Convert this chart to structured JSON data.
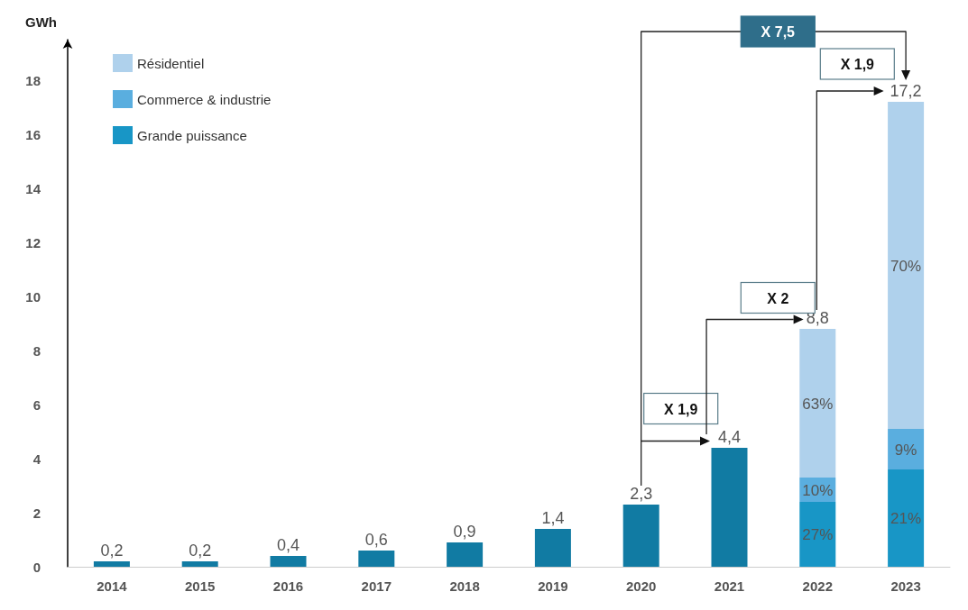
{
  "chart_data": {
    "type": "bar",
    "stacked": true,
    "ylabel": "GWh",
    "categories": [
      "2014",
      "2015",
      "2016",
      "2017",
      "2018",
      "2019",
      "2020",
      "2021",
      "2022",
      "2023"
    ],
    "series": [
      {
        "color": "#117ba3",
        "values": [
          0.2,
          0.2,
          0.4,
          0.6,
          0.9,
          1.4,
          2.3,
          4.4,
          null,
          null
        ]
      },
      {
        "name": "Grande puissance",
        "color": "#1896c6",
        "values": [
          null,
          null,
          null,
          null,
          null,
          null,
          null,
          null,
          2.4,
          3.6
        ]
      },
      {
        "name": "Commerce & industrie",
        "color": "#5aaedf",
        "values": [
          null,
          null,
          null,
          null,
          null,
          null,
          null,
          null,
          0.9,
          1.5
        ]
      },
      {
        "name": "Résidentiel",
        "color": "#afd1ec",
        "values": [
          null,
          null,
          null,
          null,
          null,
          null,
          null,
          null,
          5.5,
          12.1
        ]
      }
    ],
    "totals": [
      "0,2",
      "0,2",
      "0,4",
      "0,6",
      "0,9",
      "1,4",
      "2,3",
      "4,4",
      "8,8",
      "17,2"
    ],
    "ylim": [
      0,
      19.5
    ],
    "yticks": [
      0,
      2,
      4,
      6,
      8,
      10,
      12,
      14,
      16,
      18
    ],
    "annotations": [
      "X 7,5",
      "X 1,9",
      "X 2",
      "X 1,9",
      "27%",
      "10%",
      "63%",
      "21%",
      "9%",
      "70%"
    ],
    "legend": "top left",
    "grid": false
  }
}
